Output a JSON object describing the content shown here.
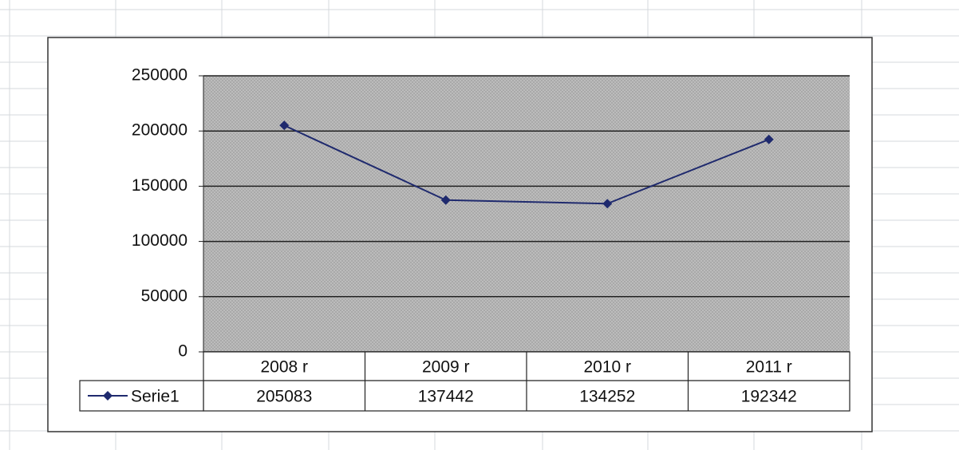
{
  "chart_data": {
    "type": "line",
    "categories": [
      "2008 r",
      "2009 r",
      "2010 r",
      "2011 r"
    ],
    "series": [
      {
        "name": "Serie1",
        "color": "#1f2a6e",
        "values": [
          205083,
          137442,
          134252,
          192342
        ]
      }
    ],
    "ylim": [
      0,
      250000
    ],
    "yticks": [
      0,
      50000,
      100000,
      150000,
      200000,
      250000
    ],
    "grid": true
  }
}
